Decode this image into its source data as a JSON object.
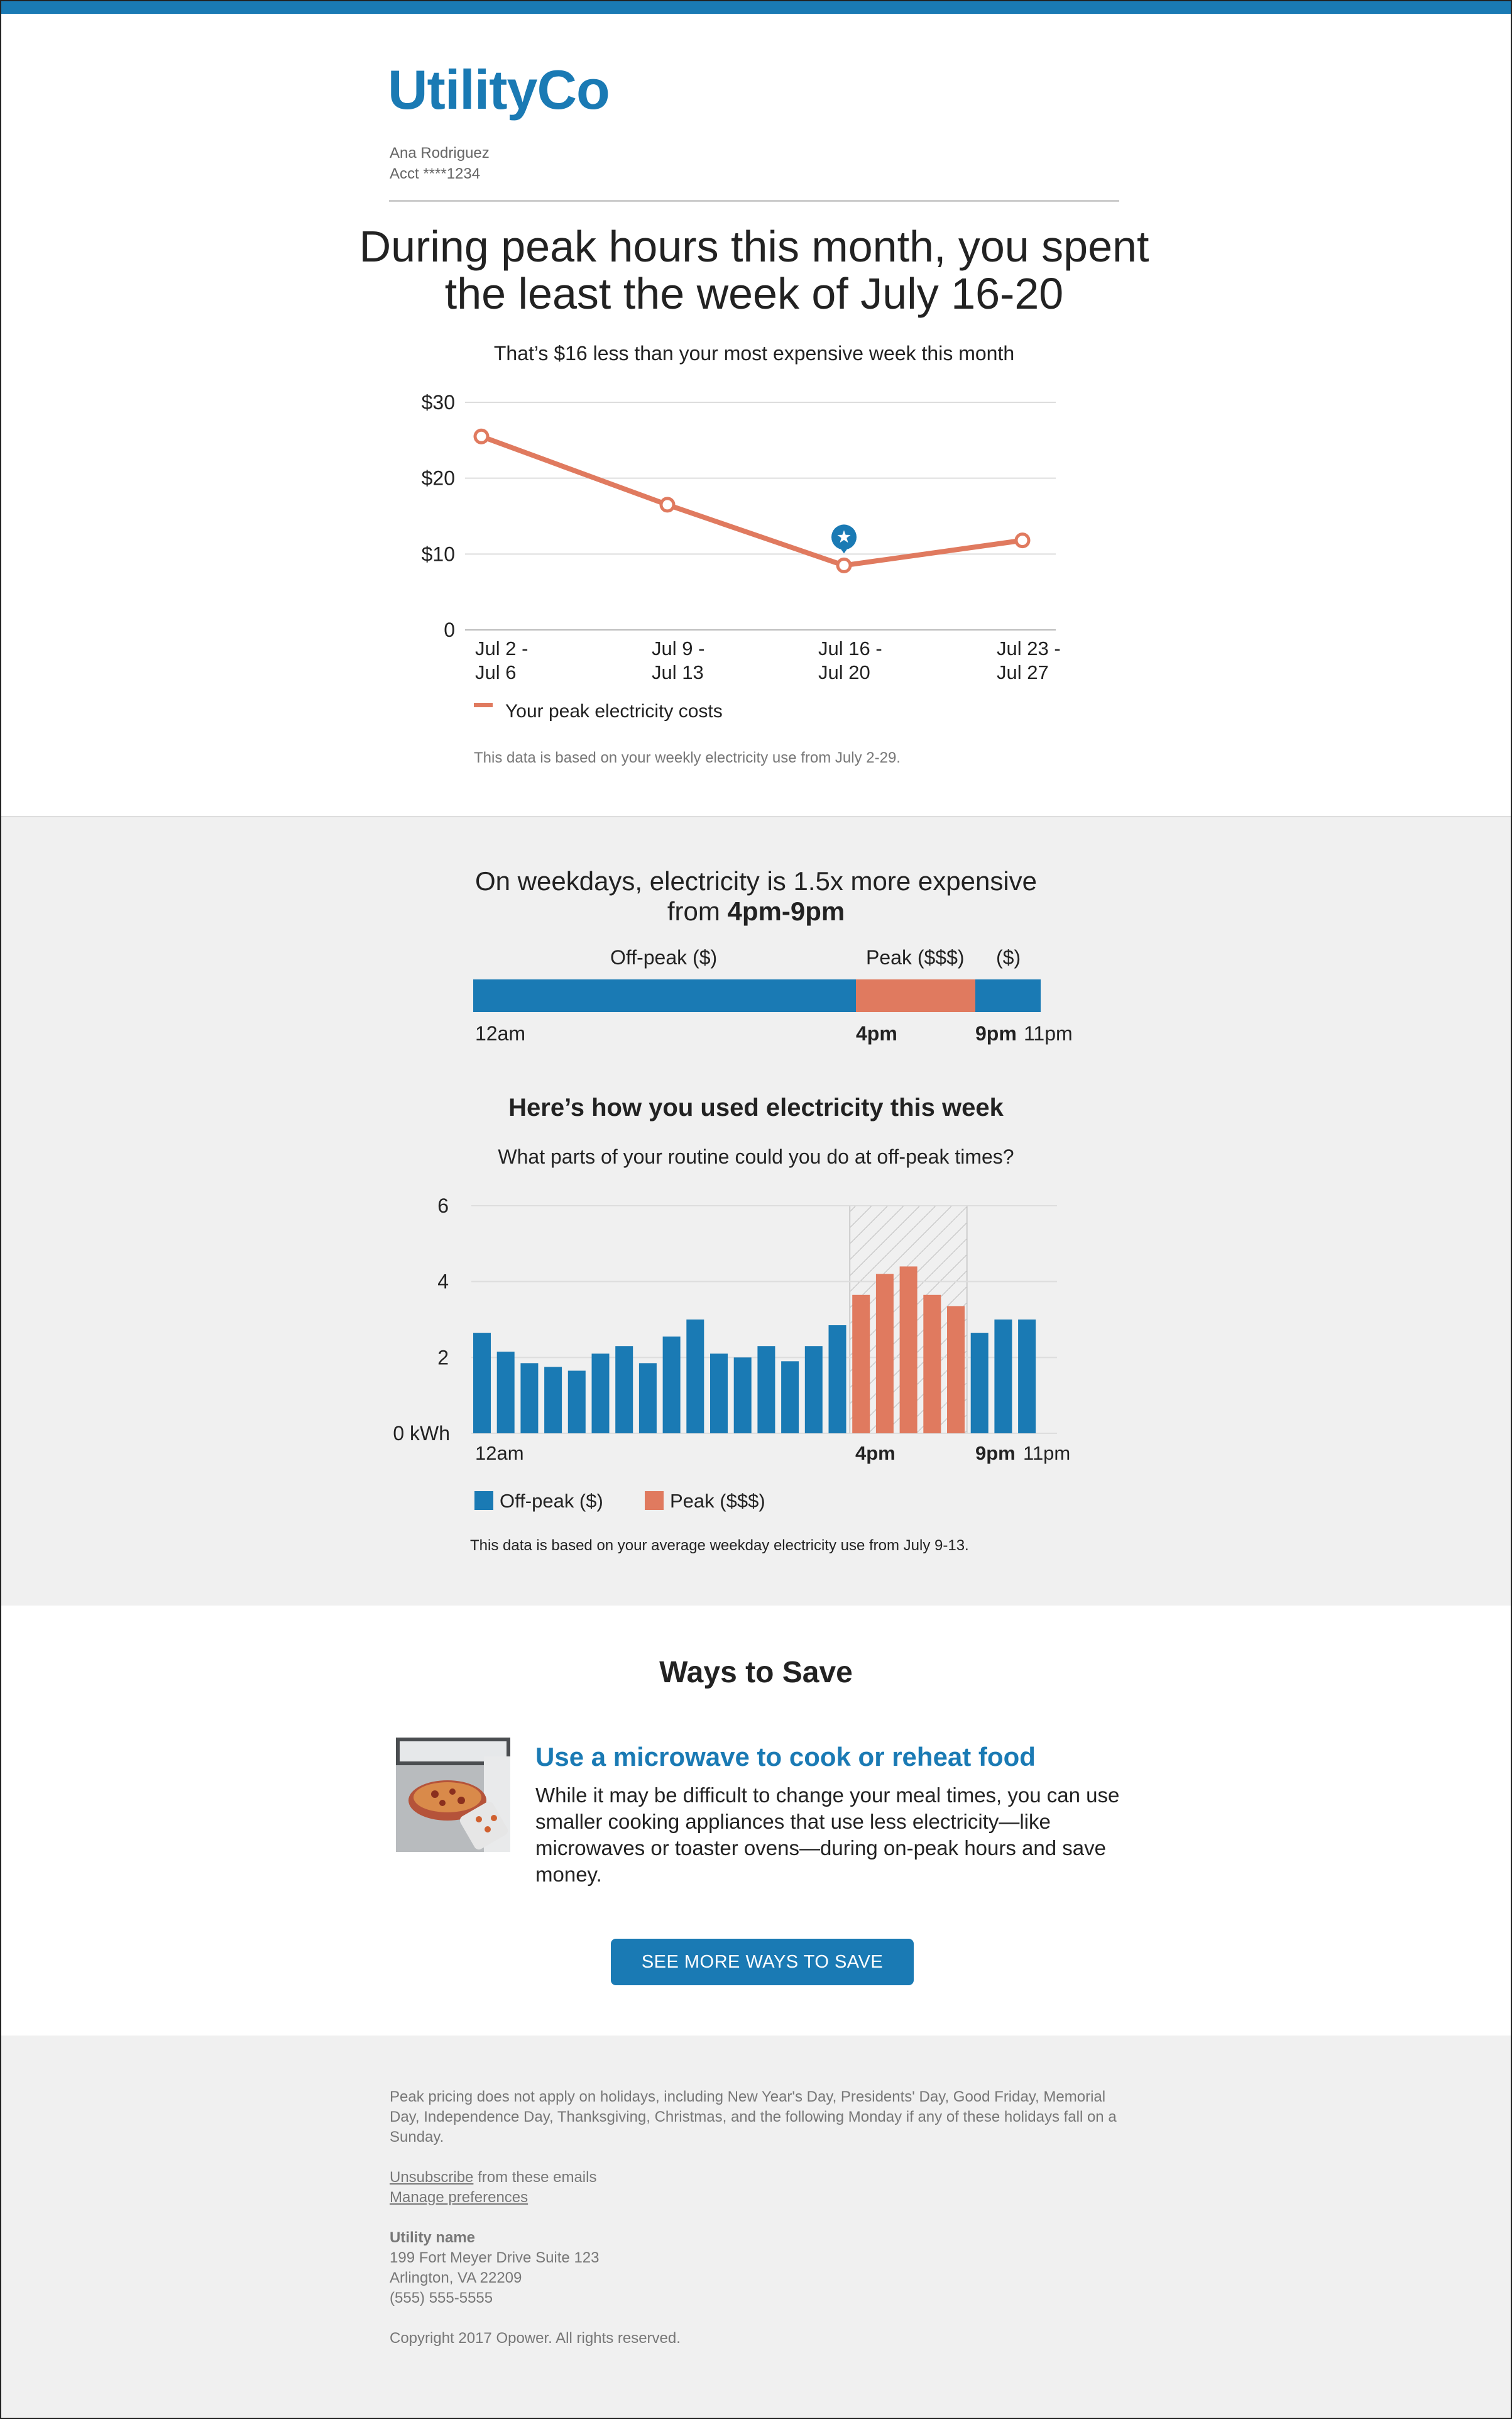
{
  "brand": {
    "logo": "UtilityCo",
    "accent": "#1a7ab4",
    "peak_color": "#e07a5f"
  },
  "account": {
    "name": "Ana Rodriguez",
    "acct": "Acct ****1234"
  },
  "headline": {
    "line1": "During peak hours this month, you spent",
    "line2": "the least the week of July 16-20"
  },
  "subhead": "That’s $16 less than your most expensive week this month",
  "chart_data": [
    {
      "type": "line",
      "categories": [
        [
          "Jul 2 -",
          "Jul 6"
        ],
        [
          "Jul 9 -",
          "Jul 13"
        ],
        [
          "Jul 16 -",
          "Jul 20"
        ],
        [
          "Jul 23 -",
          "Jul 27"
        ]
      ],
      "series": [
        {
          "name": "Your peak electricity costs",
          "values": [
            25.5,
            16.5,
            8.5,
            11.8
          ]
        }
      ],
      "highlight_index": 2,
      "highlight_icon": "star-icon",
      "yticks": [
        "$30",
        "$20",
        "$10",
        "0"
      ],
      "ylim": [
        0,
        30
      ],
      "grid": true,
      "legend": "bottom-left"
    },
    {
      "type": "bar",
      "categories": [
        "12am",
        "1am",
        "2am",
        "3am",
        "4am",
        "5am",
        "6am",
        "7am",
        "8am",
        "9am",
        "10am",
        "11am",
        "12pm",
        "1pm",
        "2pm",
        "3pm",
        "4pm",
        "5pm",
        "6pm",
        "7pm",
        "8pm",
        "9pm",
        "10pm",
        "11pm"
      ],
      "values": [
        2.65,
        2.15,
        1.85,
        1.75,
        1.65,
        2.1,
        2.3,
        1.85,
        2.55,
        3.0,
        2.1,
        2.0,
        2.3,
        1.9,
        2.3,
        2.85,
        3.65,
        4.2,
        4.4,
        3.65,
        3.35,
        2.65,
        3.0,
        3.0
      ],
      "peak_range": [
        16,
        20
      ],
      "series": [
        {
          "name": "Off-peak ($)"
        },
        {
          "name": "Peak ($$$)"
        }
      ],
      "yticks": [
        "6",
        "4",
        "2",
        "0 kWh"
      ],
      "ylim": [
        0,
        6
      ],
      "xtick_labels": {
        "start": "12am",
        "peak_start": "4pm",
        "peak_end": "9pm",
        "end": "11pm"
      },
      "grid": true,
      "legend": "bottom-left"
    }
  ],
  "chart1_note": "This data is based on your weekly electricity use from July 2-29.",
  "weekday": {
    "line1": "On weekdays, electricity is 1.5x more expensive",
    "line2_pre": "from ",
    "line2_bold": "4pm-9pm"
  },
  "timeline": {
    "offpeak_label": "Off-peak ($)",
    "peak_label": "Peak ($$$)",
    "late_label": "($)",
    "t0": "12am",
    "t1": "4pm",
    "t2": "9pm",
    "t3": "11pm"
  },
  "usage": {
    "title": "Here’s how you used electricity this week",
    "subtitle": "What parts of your routine could you do at off-peak times?",
    "note": "This data is based on your average weekday electricity use from July 9-13."
  },
  "save": {
    "title": "Ways to Save",
    "tip_title": "Use a microwave to cook or reheat food",
    "tip_body": "While it may be difficult to change your meal times, you can use smaller cooking appliances that use less electricity—like microwaves or toaster ovens—during on-peak hours and save money.",
    "button": "SEE MORE WAYS TO SAVE"
  },
  "footer": {
    "disclaimer": "Peak pricing does not apply on holidays, including New Year's Day, Presidents' Day, Good Friday, Memorial Day, Independence Day, Thanksgiving, Christmas, and the following Monday if any of these holidays fall on a Sunday.",
    "unsubscribe_link": "Unsubscribe",
    "unsubscribe_rest": " from these emails",
    "manage_link": "Manage preferences",
    "utility_name": "Utility name",
    "address1": "199 Fort Meyer Drive Suite 123",
    "address2": "Arlington, VA 22209",
    "phone": "(555) 555-5555",
    "copyright": "Copyright 2017 Opower. All rights reserved."
  }
}
